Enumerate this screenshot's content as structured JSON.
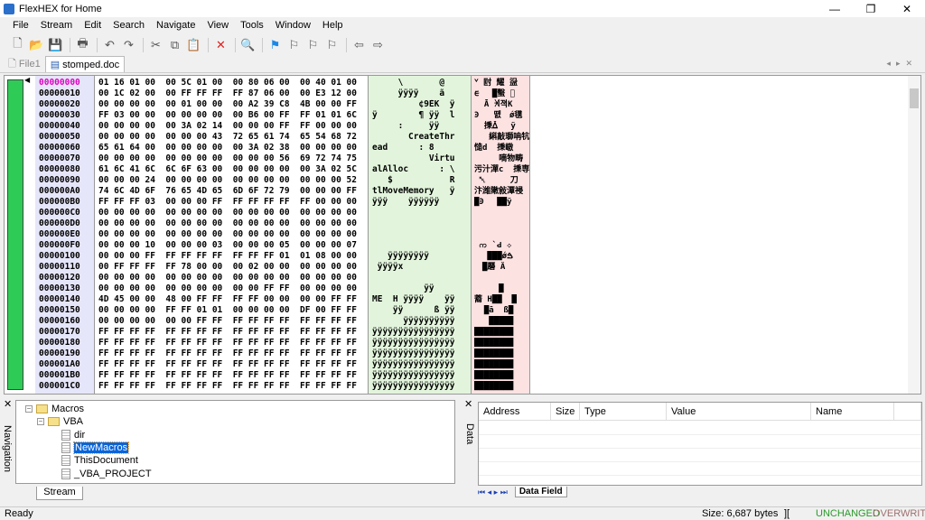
{
  "window": {
    "title": "FlexHEX for Home",
    "minimize": "—",
    "maximize": "❐",
    "close": "✕"
  },
  "menu": [
    "File",
    "Stream",
    "Edit",
    "Search",
    "Navigate",
    "View",
    "Tools",
    "Window",
    "Help"
  ],
  "toolbar": [
    {
      "icon": "new-file-icon",
      "glyph": "🗋"
    },
    {
      "icon": "open-folder-icon",
      "glyph": "📂"
    },
    {
      "icon": "save-icon",
      "glyph": "💾"
    },
    null,
    {
      "icon": "print-icon",
      "glyph": "🖶"
    },
    null,
    {
      "icon": "undo-icon",
      "glyph": "↶"
    },
    {
      "icon": "redo-icon",
      "glyph": "↷"
    },
    null,
    {
      "icon": "cut-icon",
      "glyph": "✂"
    },
    {
      "icon": "copy-icon",
      "glyph": "⧉"
    },
    {
      "icon": "paste-icon",
      "glyph": "📋"
    },
    null,
    {
      "icon": "delete-icon",
      "glyph": "✕"
    },
    null,
    {
      "icon": "find-icon",
      "glyph": "🔍"
    },
    null,
    {
      "icon": "bookmark-flag-icon",
      "glyph": "⚑"
    },
    {
      "icon": "next-bookmark-icon",
      "glyph": "⚐"
    },
    {
      "icon": "prev-bookmark-icon",
      "glyph": "⚐"
    },
    {
      "icon": "clear-bookmark-icon",
      "glyph": "⚐"
    },
    null,
    {
      "icon": "back-arrow-icon",
      "glyph": "⇦"
    },
    {
      "icon": "forward-arrow-icon",
      "glyph": "⇨"
    }
  ],
  "tabs": [
    {
      "label": "File1",
      "active": false
    },
    {
      "label": "stomped.doc",
      "active": true
    }
  ],
  "hex": {
    "current_offset": "00000000",
    "rows": [
      [
        "00000000",
        "01 16 01 00 00 5C 01 00 00 80 06 00 00 40 01 00"
      ],
      [
        "00000010",
        "00 1C 02 00 00 FF FF FF FF 87 06 00 00 E3 12 00"
      ],
      [
        "00000020",
        "00 00 00 00 00 01 00 00 00 A2 39 C8 4B 00 00 FF"
      ],
      [
        "00000030",
        "FF 03 00 00 00 00 00 00 00 B6 00 FF FF 01 01 6C"
      ],
      [
        "00000040",
        "00 00 00 00 00 3A 02 14 00 00 00 FF FF 00 00 00"
      ],
      [
        "00000050",
        "00 00 00 00 00 00 00 43 72 65 61 74 65 54 68 72"
      ],
      [
        "00000060",
        "65 61 64 00 00 00 00 00 00 3A 02 38 00 00 00 00"
      ],
      [
        "00000070",
        "00 00 00 00 00 00 00 00 00 00 00 56 69 72 74 75"
      ],
      [
        "00000080",
        "61 6C 41 6C 6C 6F 63 00 00 00 00 00 00 3A 02 5C"
      ],
      [
        "00000090",
        "00 00 00 24 00 00 00 00 00 00 00 00 00 00 00 52"
      ],
      [
        "000000A0",
        "74 6C 4D 6F 76 65 4D 65 6D 6F 72 79 00 00 00 FF"
      ],
      [
        "000000B0",
        "FF FF FF 03 00 00 00 FF FF FF FF FF FF 00 00 00"
      ],
      [
        "000000C0",
        "00 00 00 00 00 00 00 00 00 00 00 00 00 00 00 00"
      ],
      [
        "000000D0",
        "00 00 00 00 00 00 00 00 00 00 00 00 00 00 00 00"
      ],
      [
        "000000E0",
        "00 00 00 00 00 00 00 00 00 00 00 00 00 00 00 00"
      ],
      [
        "000000F0",
        "00 00 00 10 00 00 00 03 00 00 00 05 00 00 00 07"
      ],
      [
        "00000100",
        "00 00 00 FF FF FF FF FF FF FF FF 01 01 08 00 00"
      ],
      [
        "00000110",
        "00 FF FF FF FF 78 00 00 00 02 00 00 00 00 00 00"
      ],
      [
        "00000120",
        "00 00 00 00 00 00 00 00 00 00 00 00 00 00 00 00"
      ],
      [
        "00000130",
        "00 00 00 00 00 00 00 00 00 00 FF FF 00 00 00 00"
      ],
      [
        "00000140",
        "4D 45 00 00 48 00 FF FF FF FF 00 00 00 00 FF FF"
      ],
      [
        "00000150",
        "00 00 00 00 FF FF 01 01 00 00 00 00 DF 00 FF FF"
      ],
      [
        "00000160",
        "00 00 00 00 00 00 FF FF FF FF FF FF FF FF FF FF"
      ],
      [
        "00000170",
        "FF FF FF FF FF FF FF FF FF FF FF FF FF FF FF FF"
      ],
      [
        "00000180",
        "FF FF FF FF FF FF FF FF FF FF FF FF FF FF FF FF"
      ],
      [
        "00000190",
        "FF FF FF FF FF FF FF FF FF FF FF FF FF FF FF FF"
      ],
      [
        "000001A0",
        "FF FF FF FF FF FF FF FF FF FF FF FF FF FF FF FF"
      ],
      [
        "000001B0",
        "FF FF FF FF FF FF FF FF FF FF FF FF FF FF FF FF"
      ],
      [
        "000001C0",
        "FF FF FF FF FF FF FF FF FF FF FF FF FF FF FF FF"
      ]
    ]
  },
  "navigation": {
    "label": "Navigation",
    "tab": "Stream",
    "tree": [
      {
        "label": "Macros",
        "type": "folder",
        "level": 0
      },
      {
        "label": "VBA",
        "type": "folder",
        "level": 1
      },
      {
        "label": "dir",
        "type": "stream",
        "level": 2
      },
      {
        "label": "NewMacros",
        "type": "stream",
        "level": 2,
        "selected": true
      },
      {
        "label": "ThisDocument",
        "type": "stream",
        "level": 2
      },
      {
        "label": "_VBA_PROJECT",
        "type": "stream",
        "level": 2
      }
    ]
  },
  "data_panel": {
    "label": "Data",
    "columns": [
      "Address",
      "Size",
      "Type",
      "Value",
      "Name"
    ],
    "tab": "Data Field"
  },
  "status": {
    "text": "Ready",
    "size": "Size: 6,687 bytes",
    "cursor_mark": "][",
    "changed": "UNCHANGED",
    "mode": "OVERWRITE",
    "changed_color": "#2a9a2a",
    "mode_color": "#a07070"
  },
  "colors": {
    "offset_bg": "#e6e6fa",
    "ascii_bg": "#e2f5dc",
    "unicode_bg": "#fde2e2",
    "current_offset": "#e000c0",
    "strip": "#2ecc57"
  }
}
